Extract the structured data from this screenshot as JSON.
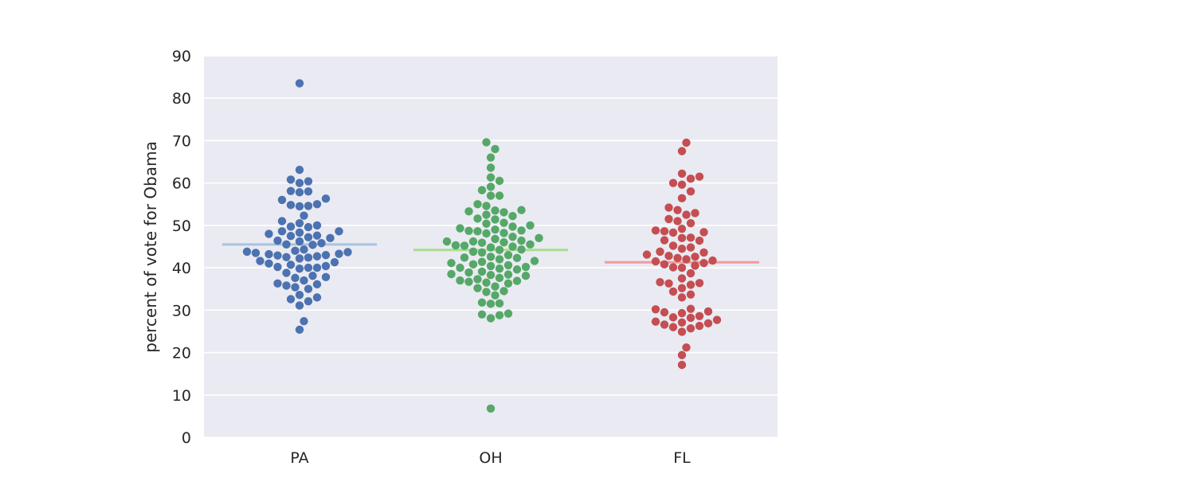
{
  "chart_data": {
    "type": "scatter",
    "subtype": "swarm",
    "title": "",
    "xlabel": "",
    "ylabel": "percent of vote for Obama",
    "categories": [
      "PA",
      "OH",
      "FL"
    ],
    "ylim": [
      0,
      90
    ],
    "yticks": [
      0,
      10,
      20,
      30,
      40,
      50,
      60,
      70,
      80,
      90
    ],
    "grid": true,
    "background": "#eaeaf2",
    "series": [
      {
        "category": "PA",
        "color": "#4c72b0",
        "mean_line_color": "#a7c4e0",
        "mean": 45.5,
        "values": [
          83.5,
          63.1,
          60.8,
          60.4,
          60.0,
          58.1,
          58.0,
          57.8,
          56.3,
          56.0,
          55.0,
          54.8,
          54.6,
          54.5,
          52.3,
          51.0,
          50.5,
          50.0,
          49.7,
          49.6,
          48.6,
          48.6,
          48.3,
          48.0,
          47.6,
          47.5,
          47.2,
          47.0,
          46.4,
          46.2,
          45.8,
          45.5,
          45.4,
          44.3,
          44.0,
          43.8,
          43.7,
          43.5,
          43.3,
          43.2,
          43.0,
          42.9,
          42.7,
          42.5,
          42.4,
          42.2,
          41.6,
          41.3,
          41.0,
          40.7,
          40.4,
          40.2,
          40.0,
          40.0,
          39.8,
          38.8,
          38.1,
          37.8,
          37.6,
          37.0,
          36.3,
          36.1,
          35.8,
          35.4,
          35.0,
          33.6,
          33.0,
          32.6,
          32.1,
          31.1,
          27.4,
          25.4
        ]
      },
      {
        "category": "OH",
        "color": "#55a868",
        "mean_line_color": "#a8df8d",
        "mean": 44.2,
        "values": [
          69.6,
          68.0,
          66.0,
          63.6,
          61.3,
          60.5,
          59.1,
          58.3,
          57.0,
          57.0,
          55.0,
          54.6,
          53.6,
          53.5,
          53.3,
          53.1,
          52.5,
          52.2,
          51.6,
          51.4,
          50.6,
          50.4,
          50.0,
          49.7,
          49.3,
          49.0,
          48.8,
          48.7,
          48.6,
          48.2,
          48.1,
          47.3,
          47.0,
          46.8,
          46.4,
          46.2,
          46.2,
          46.0,
          45.9,
          45.5,
          45.3,
          45.2,
          45.0,
          44.8,
          44.3,
          44.2,
          43.8,
          43.6,
          43.0,
          42.6,
          42.4,
          42.3,
          42.0,
          41.6,
          41.4,
          41.1,
          40.8,
          40.6,
          40.4,
          40.2,
          40.0,
          39.8,
          39.6,
          39.1,
          38.9,
          38.5,
          38.4,
          38.3,
          38.1,
          37.6,
          37.3,
          37.0,
          36.9,
          36.7,
          36.5,
          36.3,
          35.6,
          35.2,
          34.5,
          34.3,
          33.5,
          31.8,
          31.6,
          31.5,
          29.2,
          29.0,
          28.8,
          28.1,
          6.8
        ]
      },
      {
        "category": "FL",
        "color": "#c44e52",
        "mean_line_color": "#f29b9b",
        "mean": 41.3,
        "values": [
          69.5,
          67.5,
          62.2,
          61.5,
          61.0,
          60.0,
          59.6,
          58.0,
          56.4,
          54.2,
          53.6,
          52.9,
          52.5,
          51.5,
          51.0,
          50.5,
          49.2,
          48.8,
          48.6,
          48.4,
          48.3,
          47.1,
          47.0,
          46.5,
          46.4,
          45.2,
          44.8,
          44.5,
          43.8,
          43.6,
          43.1,
          42.8,
          42.6,
          42.3,
          42.0,
          41.7,
          41.5,
          41.1,
          40.8,
          40.5,
          40.1,
          40.0,
          38.7,
          37.5,
          36.6,
          36.4,
          36.3,
          36.0,
          35.2,
          34.4,
          33.7,
          33.0,
          30.3,
          30.2,
          29.7,
          29.5,
          29.3,
          28.6,
          28.3,
          28.2,
          27.7,
          27.3,
          27.1,
          26.9,
          26.6,
          26.3,
          26.0,
          25.7,
          24.9,
          21.2,
          19.4,
          17.1
        ]
      }
    ]
  }
}
